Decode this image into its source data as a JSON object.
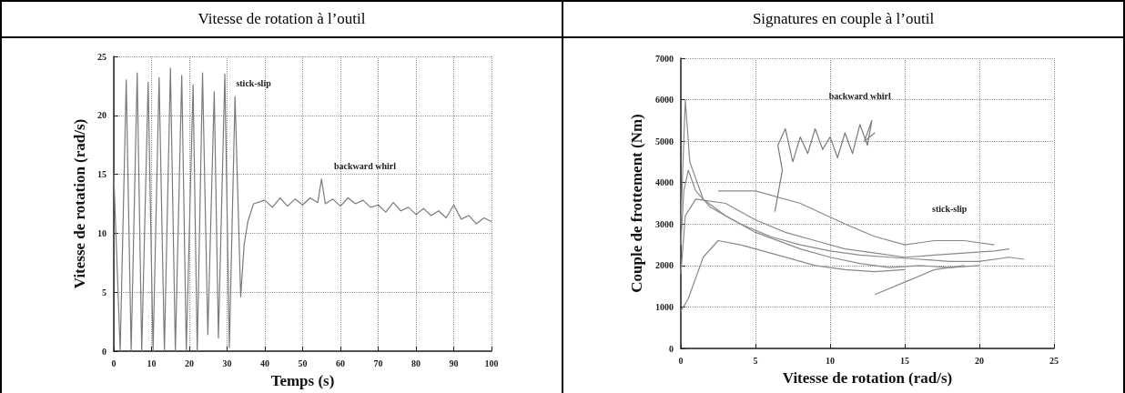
{
  "chart_data": [
    {
      "type": "line",
      "title": "Vitesse de rotation à l’outil",
      "xlabel": "Temps (s)",
      "ylabel": "Vitesse de rotation (rad/s)",
      "xlim": [
        0,
        100
      ],
      "xticks": [
        0,
        10,
        20,
        30,
        40,
        50,
        60,
        70,
        80,
        90,
        100
      ],
      "ylim": [
        0,
        25
      ],
      "yticks": [
        0,
        5,
        10,
        15,
        20,
        25
      ],
      "grid": true,
      "color": "#7a7a7a",
      "x": [
        0,
        1.7,
        3.3,
        4.6,
        6.2,
        7.4,
        9.1,
        10.4,
        12.0,
        13.4,
        15.0,
        16.3,
        18.0,
        19.2,
        21.0,
        22.1,
        23.5,
        24.9,
        26.6,
        27.7,
        29.4,
        30.6,
        32.1,
        33.6,
        34.5,
        35.5,
        37,
        40,
        42,
        44,
        46,
        48,
        50,
        52,
        54,
        55,
        56,
        58,
        60,
        62,
        64,
        66,
        68,
        70,
        72,
        74,
        76,
        78,
        80,
        82,
        84,
        86,
        88,
        90,
        92,
        94,
        96,
        98,
        100
      ],
      "values": [
        15,
        0,
        23,
        0,
        23.6,
        0,
        22.8,
        0,
        23.2,
        0,
        24,
        0,
        23.4,
        0,
        22.6,
        0,
        23.6,
        1.4,
        22,
        1.1,
        23.5,
        0.3,
        21.6,
        4.6,
        9,
        11,
        12.5,
        12.8,
        12.2,
        13,
        12.3,
        12.9,
        12.4,
        13,
        12.6,
        14.6,
        12.5,
        12.9,
        12.3,
        13,
        12.5,
        12.8,
        12.2,
        12.4,
        11.8,
        12.6,
        11.9,
        12.2,
        11.6,
        12.1,
        11.5,
        11.9,
        11.3,
        12.4,
        11.2,
        11.5,
        10.8,
        11.3,
        11
      ],
      "annotations": [
        "stick-slip",
        "backward whirl"
      ]
    },
    {
      "type": "line",
      "title": "Signatures en couple à l’outil",
      "xlabel": "Vitesse de rotation (rad/s)",
      "ylabel": "Couple de frottement (Nm)",
      "xlim": [
        0,
        25
      ],
      "xticks": [
        0,
        5,
        10,
        15,
        20,
        25
      ],
      "ylim": [
        0,
        7000
      ],
      "yticks": [
        0,
        1000,
        2000,
        3000,
        4000,
        5000,
        6000,
        7000
      ],
      "grid": true,
      "series": [
        {
          "color": "#8a8a8a",
          "x": [
            0,
            0.2,
            0.5,
            1,
            2,
            4,
            6,
            8,
            10,
            12,
            14,
            16,
            18,
            20,
            22,
            23
          ],
          "values": [
            2500,
            3800,
            4300,
            3800,
            3400,
            3000,
            2700,
            2500,
            2350,
            2250,
            2200,
            2150,
            2100,
            2100,
            2200,
            2150
          ]
        },
        {
          "color": "#8a8a8a",
          "x": [
            0,
            0.3,
            1,
            3,
            5,
            7,
            9,
            11,
            13,
            15,
            17,
            19,
            21,
            22
          ],
          "values": [
            1800,
            3200,
            3600,
            3500,
            3100,
            2800,
            2600,
            2400,
            2300,
            2200,
            2250,
            2300,
            2350,
            2400
          ]
        },
        {
          "color": "#8a8a8a",
          "x": [
            0,
            0.3,
            0.6,
            1.5,
            3,
            5,
            8,
            10,
            12,
            14,
            16,
            18,
            20
          ],
          "values": [
            3000,
            6000,
            4500,
            3600,
            3200,
            2800,
            2400,
            2200,
            2050,
            1950,
            2000,
            1950,
            2000
          ]
        },
        {
          "color": "#8a8a8a",
          "x": [
            0,
            0.5,
            1.5,
            2.5,
            4,
            6,
            9,
            11,
            13,
            15
          ],
          "values": [
            900,
            1200,
            2200,
            2600,
            2500,
            2300,
            2000,
            1900,
            1850,
            1900
          ]
        },
        {
          "color": "#8a8a8a",
          "x": [
            2.5,
            5,
            8,
            11,
            13,
            15,
            17,
            19,
            21
          ],
          "values": [
            3800,
            3800,
            3500,
            3000,
            2700,
            2500,
            2600,
            2600,
            2500
          ]
        },
        {
          "color": "#8a8a8a",
          "x": [
            13,
            15,
            17,
            19
          ],
          "values": [
            1300,
            1600,
            1900,
            2000
          ]
        },
        {
          "color": "#7a7a7a",
          "x": [
            6.3,
            6.8,
            6.5,
            7,
            7.5,
            8,
            8.5,
            9,
            9.5,
            10,
            10.5,
            11,
            11.5,
            12,
            12.5,
            12.8,
            12.3,
            13
          ],
          "values": [
            3300,
            4300,
            4900,
            5300,
            4500,
            5100,
            4700,
            5300,
            4800,
            5100,
            4600,
            5200,
            4700,
            5400,
            4900,
            5500,
            5000,
            5200
          ]
        }
      ],
      "annotations": [
        "stick-slip",
        "backward whirl"
      ]
    }
  ]
}
